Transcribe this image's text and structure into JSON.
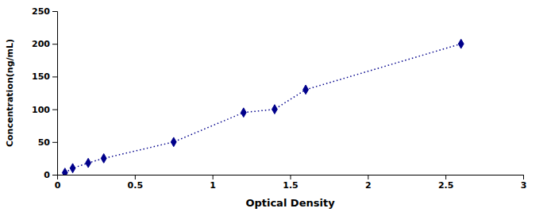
{
  "chart_data": {
    "type": "line",
    "x": [
      0.05,
      0.1,
      0.2,
      0.3,
      0.75,
      1.2,
      1.4,
      1.6,
      2.6
    ],
    "values": [
      3,
      10,
      18,
      25,
      50,
      95,
      100,
      130,
      200
    ],
    "color": "#00008B",
    "marker": "diamond",
    "line_style": "dotted",
    "xlabel": "Optical Density",
    "ylabel": "Concentration(ng/mL)",
    "xlim": [
      0,
      3
    ],
    "ylim": [
      0,
      250
    ],
    "xticks": [
      0,
      0.5,
      1,
      1.5,
      2,
      2.5,
      3
    ],
    "yticks": [
      0,
      50,
      100,
      150,
      200,
      250
    ],
    "grid": false
  }
}
